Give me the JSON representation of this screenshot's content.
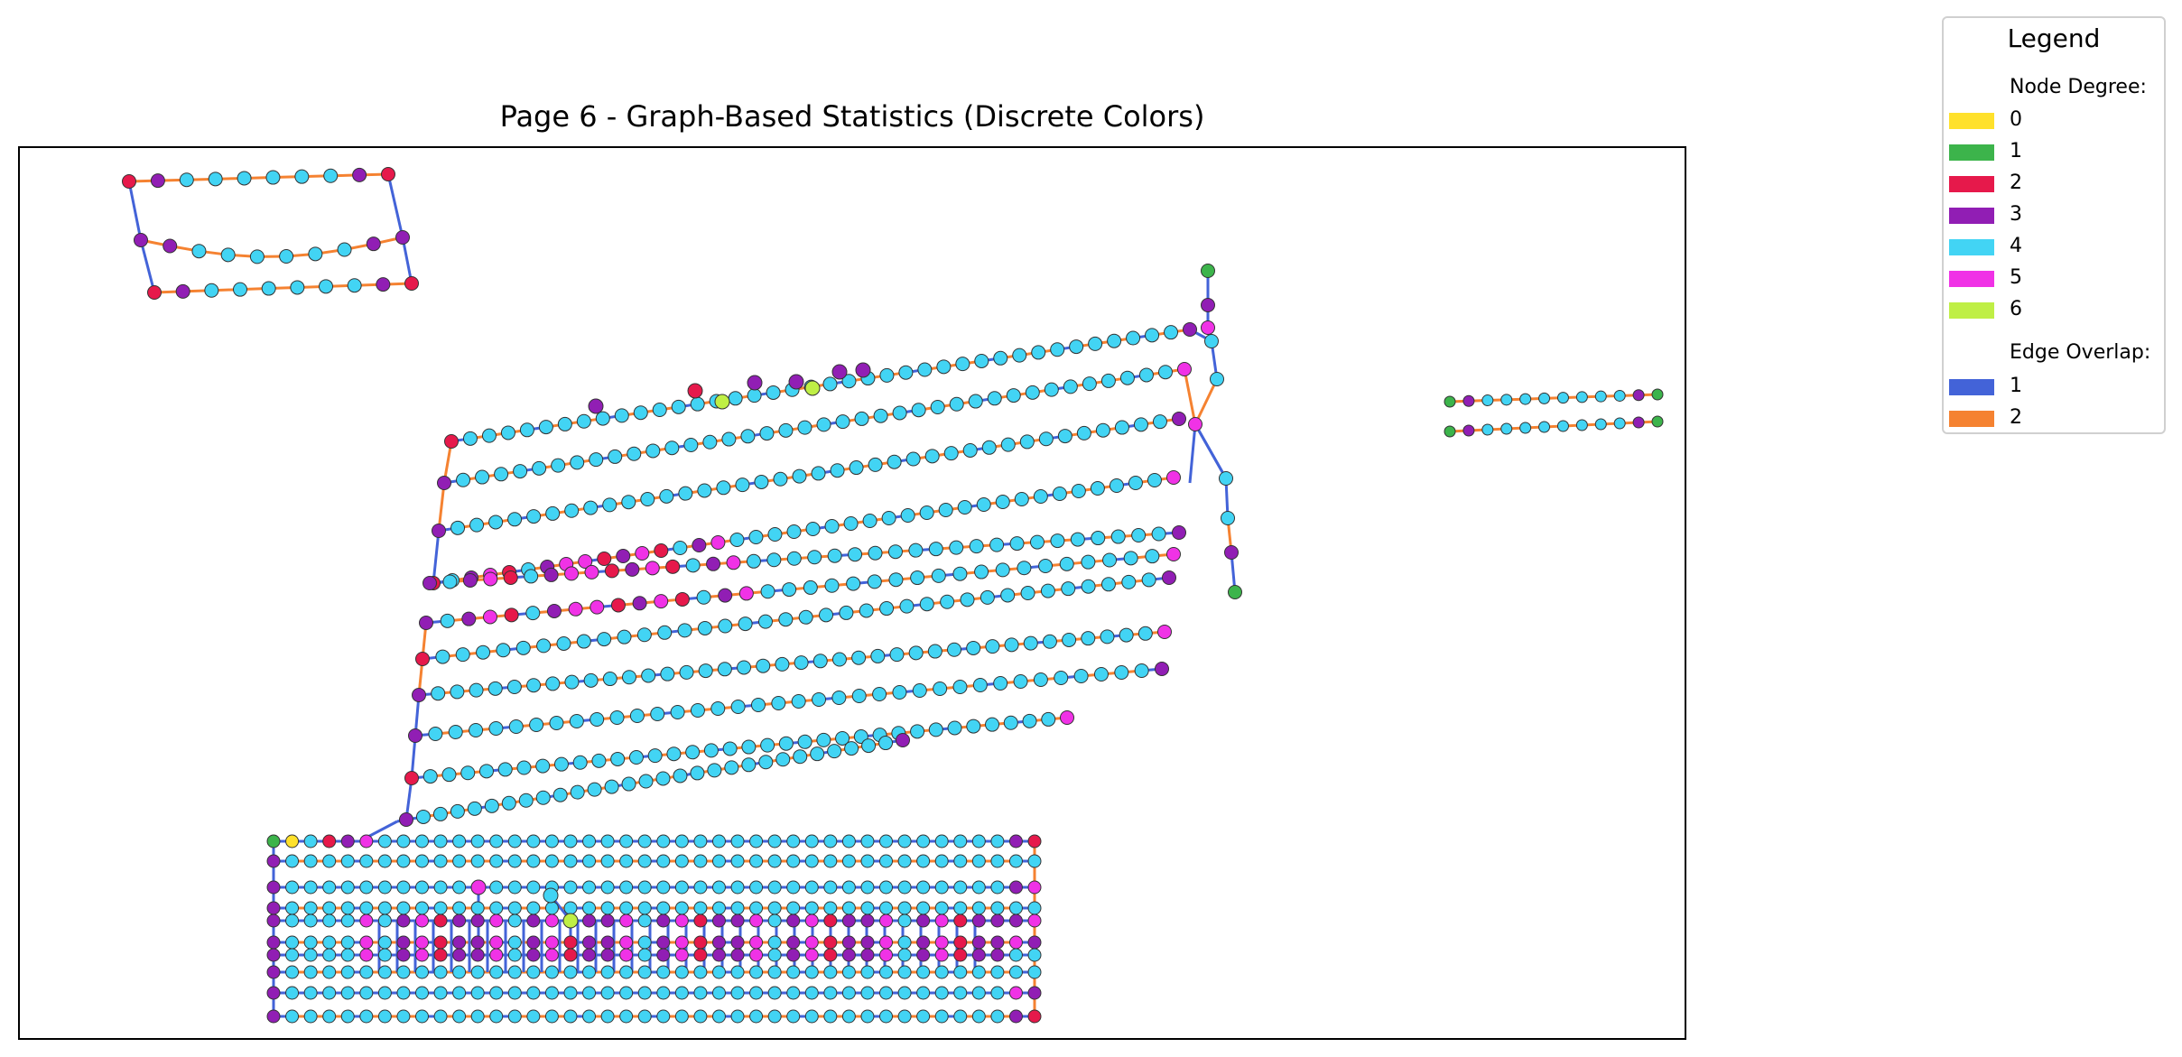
{
  "title": "Page 6 - Graph-Based Statistics (Discrete Colors)",
  "legend": {
    "title": "Legend",
    "node_degree_heading": "Node Degree:",
    "node_degree": [
      {
        "label": "0",
        "color": "#ffe12b"
      },
      {
        "label": "1",
        "color": "#3cb44b"
      },
      {
        "label": "2",
        "color": "#e6194b"
      },
      {
        "label": "3",
        "color": "#911eb4"
      },
      {
        "label": "4",
        "color": "#42d4f4"
      },
      {
        "label": "5",
        "color": "#f032e6"
      },
      {
        "label": "6",
        "color": "#bfef45"
      }
    ],
    "edge_overlap_heading": "Edge Overlap:",
    "edge_overlap": [
      {
        "label": "1",
        "color": "#4363d8"
      },
      {
        "label": "2",
        "color": "#f58231"
      }
    ]
  }
}
